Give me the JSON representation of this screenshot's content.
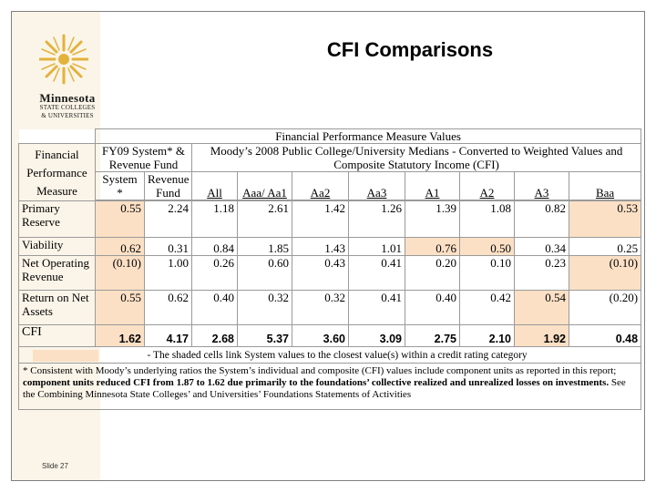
{
  "sidebar": {
    "logo_line1": "Minnesota",
    "logo_line2": "STATE COLLEGES",
    "logo_line3": "& UNIVERSITIES"
  },
  "title": "CFI Comparisons",
  "slide_number": "Slide 27",
  "table": {
    "super_header": "Financial Performance Measure Values",
    "system_header": "FY09 System* & Revenue Fund",
    "moodys_header": "Moody’s 2008 Public College/University Medians - Converted to Weighted Values and Composite Statutory Income (CFI)",
    "measure_header_a": "Financial",
    "measure_header_b": "Performance",
    "measure_header_c": "Measure",
    "columns": [
      "System *",
      "Revenue Fund",
      "All",
      "Aaa/ Aa1",
      "Aa2",
      "Aa3",
      "A1",
      "A2",
      "A3",
      "Baa"
    ],
    "rows": [
      {
        "label": "Primary Reserve",
        "values": [
          "0.55",
          "2.24",
          "1.18",
          "2.61",
          "1.42",
          "1.26",
          "1.39",
          "1.08",
          "0.82",
          "0.53"
        ]
      },
      {
        "label": "Viability",
        "values": [
          "0.62",
          "0.31",
          "0.84",
          "1.85",
          "1.43",
          "1.01",
          "0.76",
          "0.50",
          "0.34",
          "0.25"
        ]
      },
      {
        "label": "Net Operating Revenue",
        "values": [
          "(0.10)",
          "1.00",
          "0.26",
          "0.60",
          "0.43",
          "0.41",
          "0.20",
          "0.10",
          "0.23",
          "(0.10)"
        ]
      },
      {
        "label": "Return on Net Assets",
        "values": [
          "0.55",
          "0.62",
          "0.40",
          "0.32",
          "0.32",
          "0.41",
          "0.40",
          "0.42",
          "0.54",
          "(0.20)"
        ]
      },
      {
        "label": "CFI",
        "values": [
          "1.62",
          "4.17",
          "2.68",
          "5.37",
          "3.60",
          "3.09",
          "2.75",
          "2.10",
          "1.92",
          "0.48"
        ]
      }
    ],
    "shade_note": "- The shaded cells link System values to the closest value(s) within a credit rating category",
    "footnote_plain": "* Consistent with Moody’s underlying ratios the System’s individual and composite (CFI) values include component units as reported in this report;",
    "footnote_bold": "component units reduced CFI from 1.87 to 1.62 due primarily to the foundations’ collective realized and unrealized losses on investments.",
    "footnote_tail": "See the Combining Minnesota State Colleges’ and Universities’ Foundations Statements of Activities"
  },
  "colors": {
    "shade": "#fbe0c6",
    "sidebar": "#fbf5e9",
    "logo": "#e3b23c"
  }
}
